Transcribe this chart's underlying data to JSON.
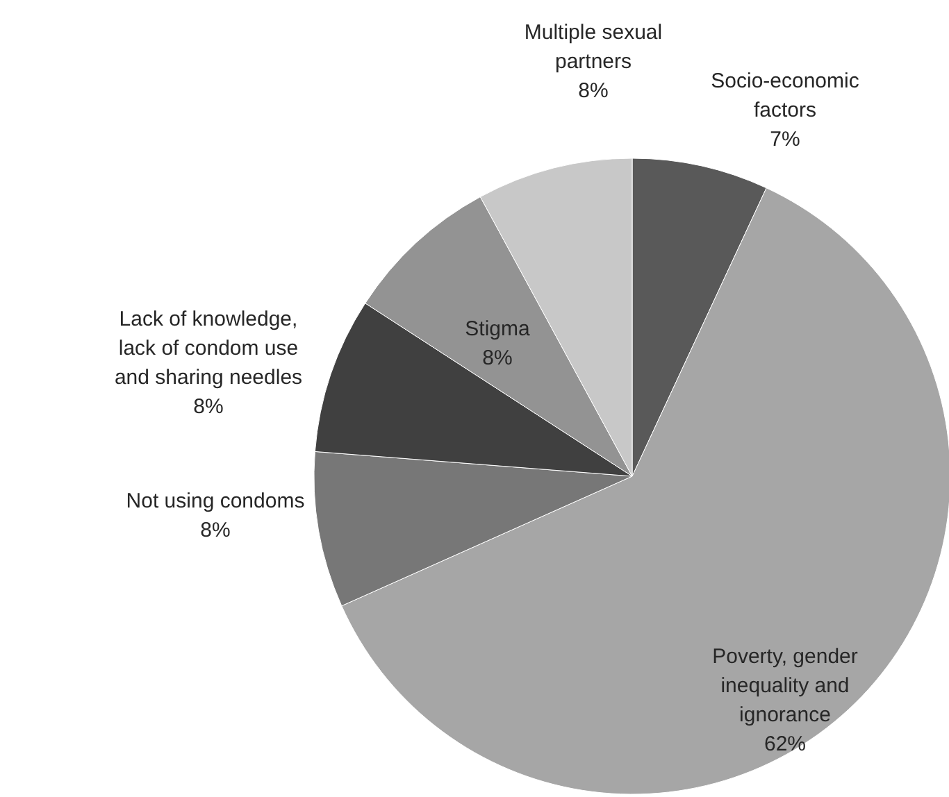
{
  "chart_data": {
    "type": "pie",
    "categories": [
      "Socio-economic factors",
      "Poverty, gender inequality and ignorance",
      "Not using condoms",
      "Lack of knowledge, lack of condom use and sharing needles",
      "Stigma",
      "Multiple sexual partners"
    ],
    "values": [
      7,
      62,
      8,
      8,
      8,
      8
    ],
    "value_labels": [
      "7%",
      "62%",
      "8%",
      "8%",
      "8%",
      "8%"
    ],
    "colors": [
      "#595959",
      "#a6a6a6",
      "#777777",
      "#404040",
      "#939393",
      "#c8c8c8"
    ]
  }
}
